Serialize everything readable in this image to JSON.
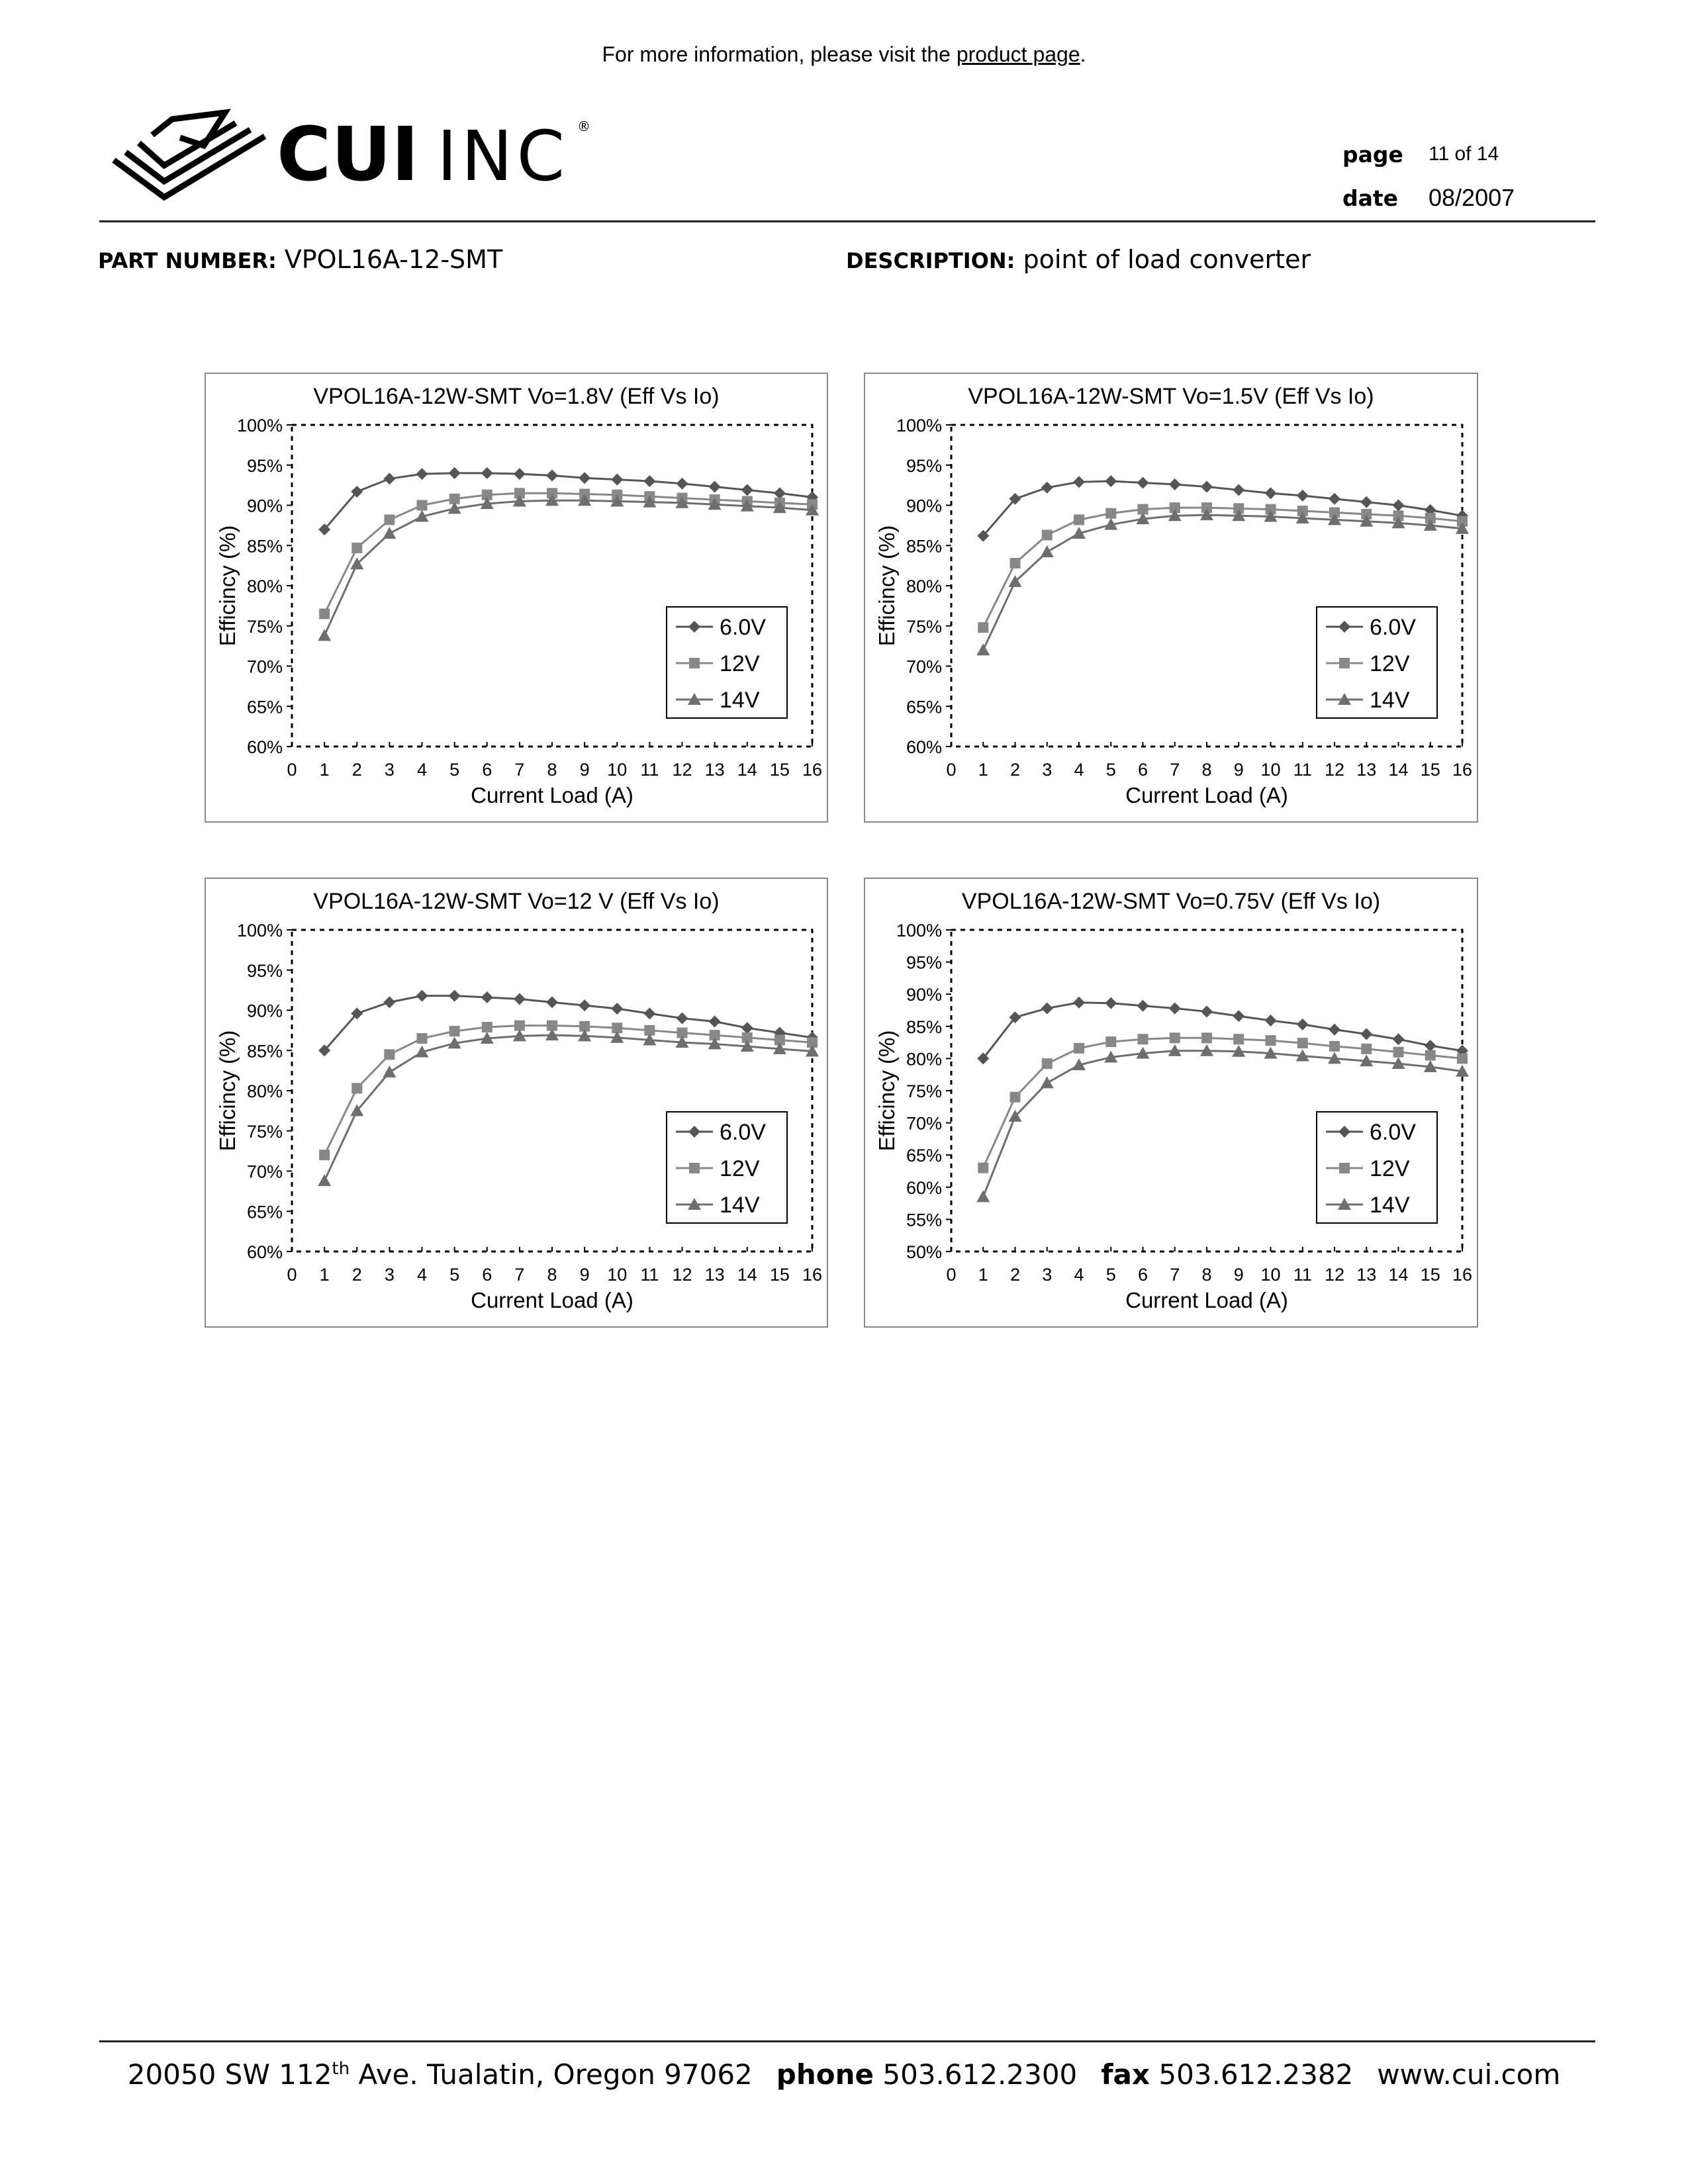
{
  "header": {
    "note_prefix": "For more information, please visit the ",
    "note_link": "product page",
    "note_suffix": ".",
    "logo_text_bold": "CUI",
    "logo_text_light": "INC",
    "logo_mark": "®",
    "page_label": "page",
    "page_value": "11 of 14",
    "date_label": "date",
    "date_value": "08/2007"
  },
  "fields": {
    "part_label": "PART NUMBER:",
    "part_value": "VPOL16A-12-SMT",
    "desc_label": "DESCRIPTION:",
    "desc_value": "point of load converter"
  },
  "chart_data": [
    {
      "type": "line",
      "title": "VPOL16A-12W-SMT Vo=1.8V (Eff Vs Io)",
      "xlabel": "Current Load (A)",
      "ylabel": "Efficincy (%)",
      "xlim": [
        0,
        16
      ],
      "ylim": [
        60,
        100
      ],
      "yticks": [
        60,
        65,
        70,
        75,
        80,
        85,
        90,
        95,
        100
      ],
      "x": [
        1,
        2,
        3,
        4,
        5,
        6,
        7,
        8,
        9,
        10,
        11,
        12,
        13,
        14,
        15,
        16
      ],
      "legend": "right",
      "series": [
        {
          "name": "6.0V",
          "marker": "diamond",
          "values": [
            87.0,
            91.7,
            93.3,
            93.9,
            94.0,
            94.0,
            93.9,
            93.7,
            93.4,
            93.2,
            93.0,
            92.7,
            92.3,
            91.9,
            91.5,
            91.0
          ]
        },
        {
          "name": "12V",
          "marker": "square",
          "values": [
            76.5,
            84.7,
            88.2,
            90.0,
            90.8,
            91.3,
            91.5,
            91.5,
            91.4,
            91.3,
            91.1,
            90.9,
            90.7,
            90.5,
            90.3,
            90.1
          ]
        },
        {
          "name": "14V",
          "marker": "triangle",
          "values": [
            73.8,
            82.7,
            86.5,
            88.6,
            89.6,
            90.2,
            90.5,
            90.6,
            90.6,
            90.5,
            90.4,
            90.3,
            90.1,
            89.9,
            89.7,
            89.4
          ]
        }
      ]
    },
    {
      "type": "line",
      "title": "VPOL16A-12W-SMT Vo=1.5V (Eff Vs Io)",
      "xlabel": "Current Load (A)",
      "ylabel": "Efficincy (%)",
      "xlim": [
        0,
        16
      ],
      "ylim": [
        60,
        100
      ],
      "yticks": [
        60,
        65,
        70,
        75,
        80,
        85,
        90,
        95,
        100
      ],
      "x": [
        1,
        2,
        3,
        4,
        5,
        6,
        7,
        8,
        9,
        10,
        11,
        12,
        13,
        14,
        15,
        16
      ],
      "legend": "right",
      "series": [
        {
          "name": "6.0V",
          "marker": "diamond",
          "values": [
            86.2,
            90.8,
            92.2,
            92.9,
            93.0,
            92.8,
            92.6,
            92.3,
            91.9,
            91.5,
            91.2,
            90.8,
            90.4,
            90.0,
            89.4,
            88.7
          ]
        },
        {
          "name": "12V",
          "marker": "square",
          "values": [
            74.8,
            82.8,
            86.3,
            88.2,
            89.0,
            89.5,
            89.7,
            89.7,
            89.6,
            89.5,
            89.3,
            89.1,
            88.9,
            88.7,
            88.4,
            88.0
          ]
        },
        {
          "name": "14V",
          "marker": "triangle",
          "values": [
            72.0,
            80.5,
            84.2,
            86.5,
            87.6,
            88.3,
            88.7,
            88.8,
            88.7,
            88.6,
            88.4,
            88.2,
            88.0,
            87.8,
            87.5,
            87.1
          ]
        }
      ]
    },
    {
      "type": "line",
      "title": "VPOL16A-12W-SMT Vo=12 V (Eff Vs Io)",
      "xlabel": "Current Load (A)",
      "ylabel": "Efficincy (%)",
      "xlim": [
        0,
        16
      ],
      "ylim": [
        60,
        100
      ],
      "yticks": [
        60,
        65,
        70,
        75,
        80,
        85,
        90,
        95,
        100
      ],
      "x": [
        1,
        2,
        3,
        4,
        5,
        6,
        7,
        8,
        9,
        10,
        11,
        12,
        13,
        14,
        15,
        16
      ],
      "legend": "right",
      "series": [
        {
          "name": "6.0V",
          "marker": "diamond",
          "values": [
            85.0,
            89.6,
            91.0,
            91.8,
            91.8,
            91.6,
            91.4,
            91.0,
            90.6,
            90.2,
            89.6,
            89.0,
            88.6,
            87.8,
            87.2,
            86.6
          ]
        },
        {
          "name": "12V",
          "marker": "square",
          "values": [
            72.0,
            80.3,
            84.5,
            86.5,
            87.4,
            87.9,
            88.1,
            88.1,
            88.0,
            87.8,
            87.5,
            87.2,
            86.9,
            86.6,
            86.3,
            86.0
          ]
        },
        {
          "name": "14V",
          "marker": "triangle",
          "values": [
            68.8,
            77.5,
            82.3,
            84.8,
            85.9,
            86.5,
            86.8,
            86.9,
            86.8,
            86.6,
            86.3,
            86.0,
            85.8,
            85.5,
            85.2,
            84.9
          ]
        }
      ]
    },
    {
      "type": "line",
      "title": "VPOL16A-12W-SMT Vo=0.75V (Eff Vs Io)",
      "xlabel": "Current Load (A)",
      "ylabel": "Efficincy (%)",
      "xlim": [
        0,
        16
      ],
      "ylim": [
        50,
        100
      ],
      "yticks": [
        50,
        55,
        60,
        65,
        70,
        75,
        80,
        85,
        90,
        95,
        100
      ],
      "x": [
        1,
        2,
        3,
        4,
        5,
        6,
        7,
        8,
        9,
        10,
        11,
        12,
        13,
        14,
        15,
        16
      ],
      "legend": "right",
      "series": [
        {
          "name": "6.0V",
          "marker": "diamond",
          "values": [
            80.0,
            86.4,
            87.8,
            88.7,
            88.6,
            88.2,
            87.8,
            87.3,
            86.6,
            85.9,
            85.3,
            84.5,
            83.8,
            83.0,
            82.0,
            81.2
          ]
        },
        {
          "name": "12V",
          "marker": "square",
          "values": [
            63.0,
            74.0,
            79.2,
            81.6,
            82.6,
            83.0,
            83.2,
            83.2,
            83.0,
            82.8,
            82.4,
            81.9,
            81.5,
            81.0,
            80.5,
            80.0
          ]
        },
        {
          "name": "14V",
          "marker": "triangle",
          "values": [
            58.5,
            71.0,
            76.2,
            79.0,
            80.2,
            80.8,
            81.2,
            81.2,
            81.1,
            80.8,
            80.4,
            80.0,
            79.6,
            79.2,
            78.7,
            78.0
          ]
        }
      ]
    }
  ],
  "footer": {
    "address_pre": "20050 SW 112",
    "address_sup": "th",
    "address_post": " Ave. Tualatin, Oregon 97062",
    "phone_label": "phone",
    "phone_value": "503.612.2300",
    "fax_label": "fax",
    "fax_value": "503.612.2382",
    "web": "www.cui.com"
  }
}
